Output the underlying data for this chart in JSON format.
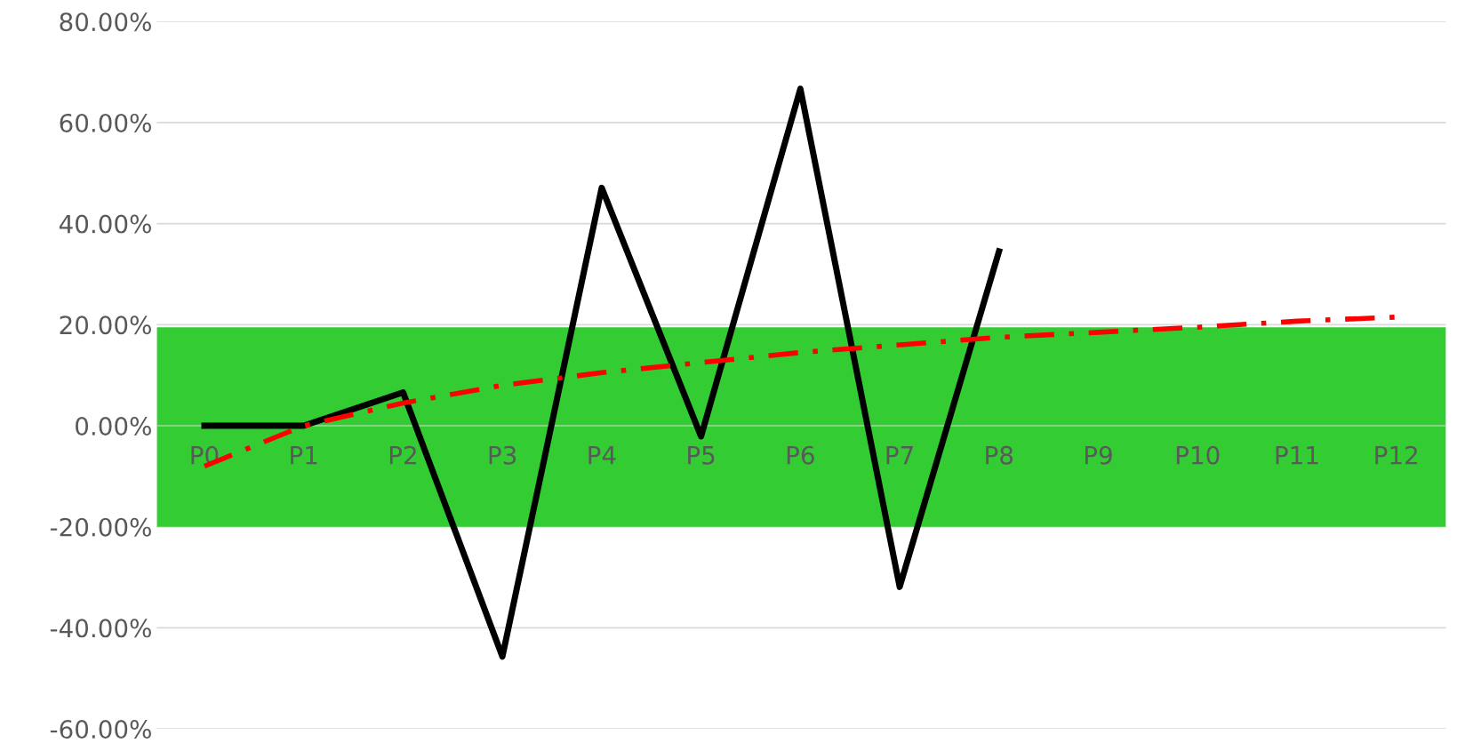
{
  "chart_data": {
    "type": "line",
    "categories": [
      "P0",
      "P1",
      "P2",
      "P3",
      "P4",
      "P5",
      "P6",
      "P7",
      "P8",
      "P9",
      "P10",
      "P11",
      "P12"
    ],
    "series": [
      {
        "color": "#000000",
        "line_style": "solid",
        "values": [
          0,
          0,
          6.6,
          -45.7,
          47.1,
          -2.1,
          66.7,
          -31.9,
          34.5,
          null,
          null,
          null,
          null
        ]
      },
      {
        "color": "#ff0000",
        "line_style": "dashed",
        "values": [
          -8,
          0,
          4.5,
          8,
          10.5,
          12.5,
          14.5,
          16,
          17.5,
          18.5,
          19.5,
          20.7,
          21.5
        ]
      }
    ],
    "ylim": [
      -60,
      80
    ],
    "yticks": [
      {
        "value": -60,
        "label": "-60.00%"
      },
      {
        "value": -40,
        "label": "-40.00%"
      },
      {
        "value": -20,
        "label": "-20.00%"
      },
      {
        "value": 0,
        "label": "0.00%"
      },
      {
        "value": 20,
        "label": "20.00%"
      },
      {
        "value": 40,
        "label": "40.00%"
      },
      {
        "value": 60,
        "label": "60.00%"
      },
      {
        "value": 80,
        "label": "80.00%"
      }
    ],
    "bands": [
      {
        "axis": "y",
        "from": -20,
        "to": 19.5,
        "color": "#33cc33"
      }
    ],
    "grid": "y",
    "legend": false,
    "marker": "none"
  }
}
